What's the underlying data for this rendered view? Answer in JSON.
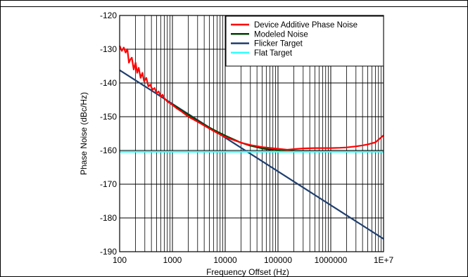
{
  "chart_data": {
    "type": "line",
    "title": "",
    "xlabel": "Frequency Offset (Hz)",
    "ylabel": "Phase Noise (dBc/Hz)",
    "x_scale": "log",
    "xlim": [
      100,
      10000000
    ],
    "ylim": [
      -190,
      -120
    ],
    "grid": true,
    "legend_position": "top-right",
    "x_ticks": [
      {
        "value": 100,
        "label": "100"
      },
      {
        "value": 1000,
        "label": "1000"
      },
      {
        "value": 10000,
        "label": "10000"
      },
      {
        "value": 100000,
        "label": "100000"
      },
      {
        "value": 1000000,
        "label": "1000000"
      },
      {
        "value": 10000000,
        "label": "1E+7"
      }
    ],
    "y_ticks": [
      -120,
      -130,
      -140,
      -150,
      -160,
      -170,
      -180,
      -190
    ],
    "series": [
      {
        "name": "Device Additive Phase Noise",
        "color": "#ff0000",
        "x": [
          100,
          110,
          120,
          130,
          140,
          150,
          160,
          170,
          185,
          200,
          215,
          230,
          250,
          270,
          290,
          320,
          350,
          380,
          420,
          460,
          500,
          550,
          600,
          650,
          700,
          800,
          900,
          1000,
          1200,
          1500,
          2000,
          3000,
          5000,
          7000,
          10000,
          20000,
          30000,
          50000,
          100000,
          150000,
          200000,
          300000,
          500000,
          700000,
          1000000,
          1500000,
          2000000,
          3000000,
          4000000,
          5000000,
          7000000,
          10000000
        ],
        "y": [
          -129,
          -130.5,
          -129.5,
          -131,
          -130,
          -134,
          -133,
          -132.5,
          -136,
          -134,
          -137,
          -135.5,
          -138.5,
          -137,
          -139.5,
          -138.5,
          -141,
          -140.5,
          -142,
          -141.5,
          -143,
          -142.5,
          -144,
          -143.5,
          -144.5,
          -145.5,
          -146,
          -146.5,
          -147.5,
          -148.5,
          -150,
          -151.5,
          -153.5,
          -154.8,
          -156,
          -157.7,
          -158.4,
          -159,
          -159.5,
          -159.8,
          -159.6,
          -159.4,
          -159.3,
          -159.3,
          -159.3,
          -159.2,
          -159.1,
          -158.8,
          -158.5,
          -158.2,
          -157.6,
          -155.5
        ]
      },
      {
        "name": "Modeled Noise",
        "color": "#004000",
        "x": [
          1000,
          1500,
          2000,
          3000,
          5000,
          7000,
          10000,
          20000,
          30000,
          50000,
          100000,
          150000,
          200000,
          300000,
          500000,
          1000000,
          3000000,
          10000000
        ],
        "y": [
          -146.3,
          -148.2,
          -149.4,
          -151.2,
          -153.2,
          -154.4,
          -155.6,
          -157.7,
          -158.6,
          -159.4,
          -160.0,
          -160.2,
          -160.3,
          -160.35,
          -160.4,
          -160.4,
          -160.4,
          -160.4
        ]
      },
      {
        "name": "Flicker Target",
        "color": "#1f3f6f",
        "x": [
          100,
          10000000
        ],
        "y": [
          -136.2,
          -186.2
        ]
      },
      {
        "name": "Flat Target",
        "color": "#33ffff",
        "x": [
          100,
          10000000
        ],
        "y": [
          -160.4,
          -160.4
        ]
      }
    ]
  }
}
